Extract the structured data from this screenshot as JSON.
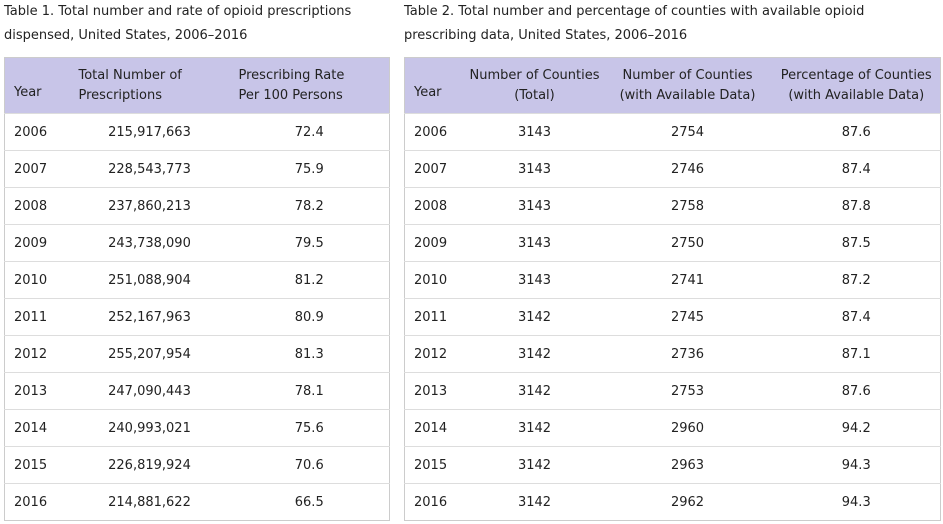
{
  "table1": {
    "caption": "Table 1. Total number and rate of opioid prescriptions dispensed, United States, 2006–2016",
    "headers": [
      "Year",
      "Total Number of\nPrescriptions",
      "Prescribing Rate\nPer 100 Persons"
    ],
    "rows": [
      [
        "2006",
        "215,917,663",
        "72.4"
      ],
      [
        "2007",
        "228,543,773",
        "75.9"
      ],
      [
        "2008",
        "237,860,213",
        "78.2"
      ],
      [
        "2009",
        "243,738,090",
        "79.5"
      ],
      [
        "2010",
        "251,088,904",
        "81.2"
      ],
      [
        "2011",
        "252,167,963",
        "80.9"
      ],
      [
        "2012",
        "255,207,954",
        "81.3"
      ],
      [
        "2013",
        "247,090,443",
        "78.1"
      ],
      [
        "2014",
        "240,993,021",
        "75.6"
      ],
      [
        "2015",
        "226,819,924",
        "70.6"
      ],
      [
        "2016",
        "214,881,622",
        "66.5"
      ]
    ]
  },
  "table2": {
    "caption": "Table 2. Total number and percentage of counties with available opioid prescribing data, United States, 2006–2016",
    "headers": [
      "Year",
      "Number of Counties\n(Total)",
      "Number of Counties\n(with Available Data)",
      "Percentage of Counties\n(with Available Data)"
    ],
    "rows": [
      [
        "2006",
        "3143",
        "2754",
        "87.6"
      ],
      [
        "2007",
        "3143",
        "2746",
        "87.4"
      ],
      [
        "2008",
        "3143",
        "2758",
        "87.8"
      ],
      [
        "2009",
        "3143",
        "2750",
        "87.5"
      ],
      [
        "2010",
        "3143",
        "2741",
        "87.2"
      ],
      [
        "2011",
        "3142",
        "2745",
        "87.4"
      ],
      [
        "2012",
        "3142",
        "2736",
        "87.1"
      ],
      [
        "2013",
        "3142",
        "2753",
        "87.6"
      ],
      [
        "2014",
        "3142",
        "2960",
        "94.2"
      ],
      [
        "2015",
        "3142",
        "2963",
        "94.3"
      ],
      [
        "2016",
        "3142",
        "2962",
        "94.3"
      ]
    ]
  }
}
